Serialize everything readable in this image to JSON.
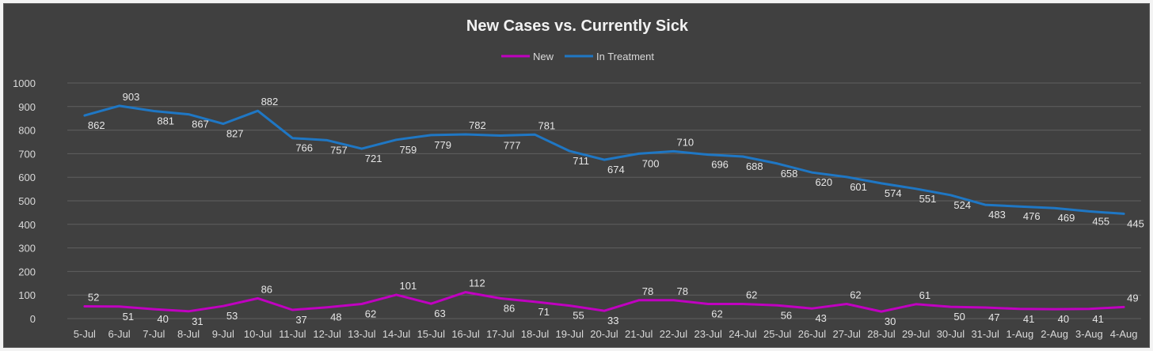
{
  "chart_data": {
    "type": "line",
    "title": "New Cases vs. Currently Sick",
    "legend_position": "top-center",
    "grid": true,
    "ylim": [
      0,
      1000
    ],
    "yticks": [
      0,
      100,
      200,
      300,
      400,
      500,
      600,
      700,
      800,
      900,
      1000
    ],
    "categories": [
      "5-Jul",
      "6-Jul",
      "7-Jul",
      "8-Jul",
      "9-Jul",
      "10-Jul",
      "11-Jul",
      "12-Jul",
      "13-Jul",
      "14-Jul",
      "15-Jul",
      "16-Jul",
      "17-Jul",
      "18-Jul",
      "19-Jul",
      "20-Jul",
      "21-Jul",
      "22-Jul",
      "23-Jul",
      "24-Jul",
      "25-Jul",
      "26-Jul",
      "27-Jul",
      "28-Jul",
      "29-Jul",
      "30-Jul",
      "31-Jul",
      "1-Aug",
      "2-Aug",
      "3-Aug",
      "4-Aug"
    ],
    "series": [
      {
        "name": "New",
        "color": "#c000c0",
        "values": [
          52,
          51,
          40,
          31,
          53,
          86,
          37,
          48,
          62,
          101,
          63,
          112,
          86,
          71,
          55,
          33,
          78,
          78,
          62,
          62,
          56,
          43,
          62,
          30,
          61,
          50,
          47,
          41,
          40,
          41,
          49
        ]
      },
      {
        "name": "In Treatment",
        "color": "#1f77c4",
        "values": [
          862,
          903,
          881,
          867,
          827,
          882,
          766,
          757,
          721,
          759,
          779,
          782,
          777,
          781,
          711,
          674,
          700,
          710,
          696,
          688,
          658,
          620,
          601,
          574,
          551,
          524,
          483,
          476,
          469,
          455,
          445
        ]
      }
    ]
  }
}
